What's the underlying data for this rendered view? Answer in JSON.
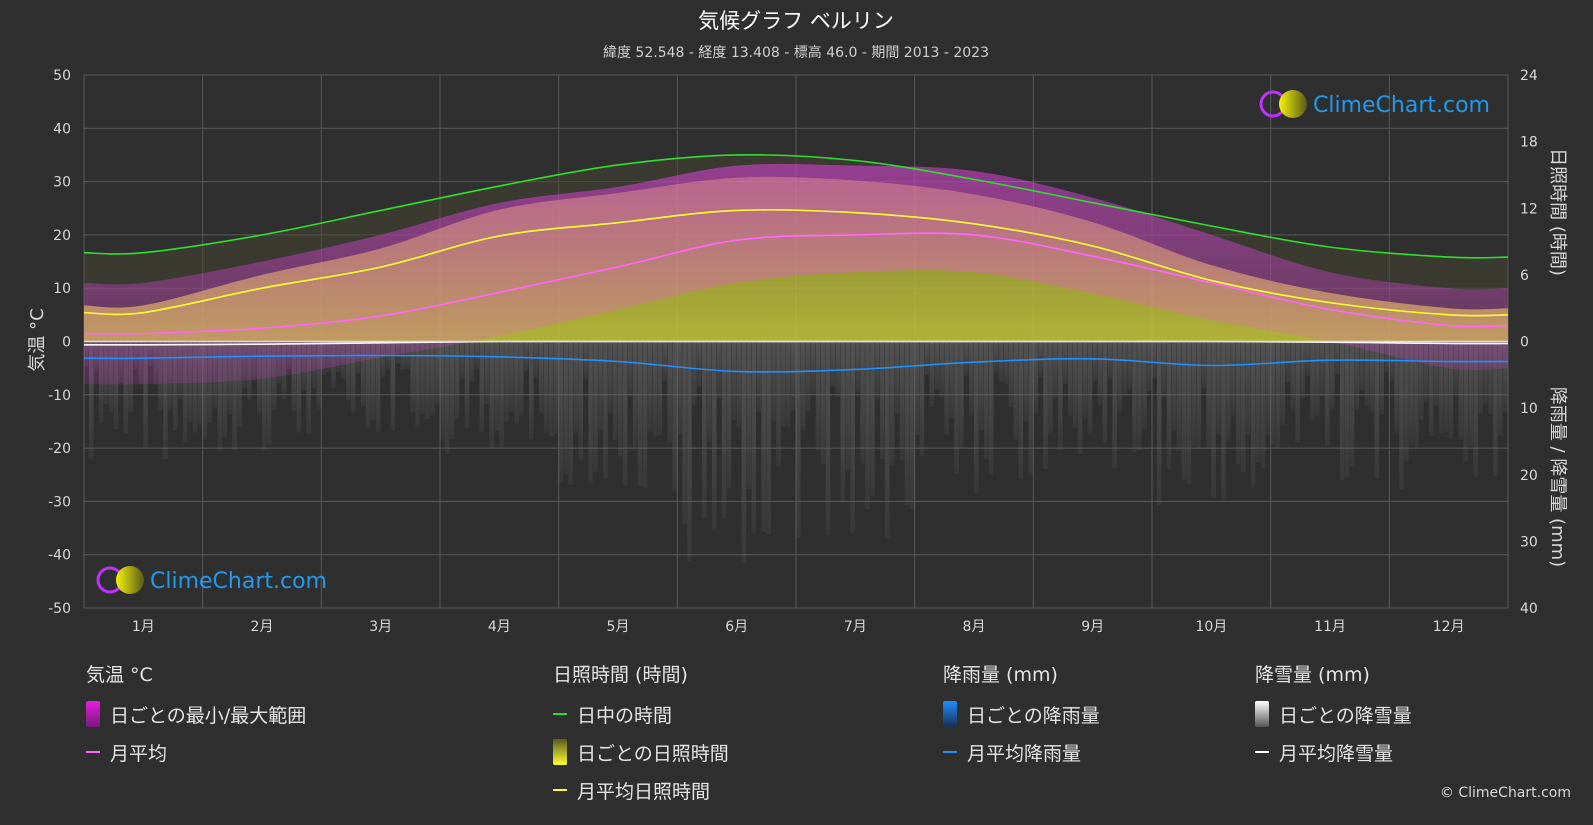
{
  "colors": {
    "background": "#2f2f2f",
    "daylight": "#2ee02e",
    "sunshine_avg": "#ffff33",
    "sunshine_bar": "#cfcf33",
    "temp_avg": "#ff66ff",
    "temp_range": "#e31ee3",
    "rain_avg": "#1e90ff",
    "rain_bar": "#1e6fb0",
    "snow_avg": "#ffffff",
    "snow_bar": "#bbbbbb",
    "grid": "#5a5a5a",
    "brand": "#1e9bef"
  },
  "header": {
    "title": "気候グラフ ベルリン",
    "subtitle": "緯度 52.548 - 経度 13.408 - 標高 46.0 - 期間 2013 - 2023"
  },
  "brand": {
    "logo_text": "ClimeChart.com",
    "copyright": "© ClimeChart.com"
  },
  "legend": {
    "temperature": {
      "heading": "気温 °C",
      "range_label": "日ごとの最小/最大範囲",
      "avg_label": "月平均"
    },
    "sunshine": {
      "heading": "日照時間 (時間)",
      "daylight_label": "日中の時間",
      "daily_label": "日ごとの日照時間",
      "avg_label": "月平均日照時間"
    },
    "rain": {
      "heading": "降雨量 (mm)",
      "daily_label": "日ごとの降雨量",
      "avg_label": "月平均降雨量"
    },
    "snow": {
      "heading": "降雪量 (mm)",
      "daily_label": "日ごとの降雪量",
      "avg_label": "月平均降雪量"
    }
  },
  "chart_data": {
    "type": "line",
    "title": "気候グラフ ベルリン",
    "subtitle": "緯度 52.548 - 経度 13.408 - 標高 46.0 - 期間 2013 - 2023",
    "categories": [
      "1月",
      "2月",
      "3月",
      "4月",
      "5月",
      "6月",
      "7月",
      "8月",
      "9月",
      "10月",
      "11月",
      "12月"
    ],
    "axes": {
      "left": {
        "label": "気温 °C",
        "min": -50,
        "max": 50,
        "ticks": [
          50,
          40,
          30,
          20,
          10,
          0,
          -10,
          -20,
          -30,
          -40,
          -50
        ]
      },
      "right_top": {
        "label": "日照時間 (時間)",
        "min": 0,
        "max": 24,
        "ticks": [
          24,
          18,
          12,
          6,
          0
        ]
      },
      "right_bottom": {
        "label": "降雨量 / 降雪量 (mm)",
        "min": 0,
        "max": 40,
        "ticks": [
          0,
          10,
          20,
          30,
          40
        ]
      }
    },
    "grid": true,
    "series": [
      {
        "name": "日中の時間",
        "axis": "sunshine_hours",
        "values": [
          8.0,
          9.6,
          11.8,
          14.0,
          15.9,
          16.8,
          16.3,
          14.6,
          12.5,
          10.4,
          8.5,
          7.6
        ]
      },
      {
        "name": "月平均日照時間",
        "axis": "sunshine_hours",
        "values": [
          2.6,
          4.8,
          6.7,
          9.5,
          10.7,
          11.8,
          11.6,
          10.6,
          8.6,
          5.5,
          3.5,
          2.4
        ]
      },
      {
        "name": "月平均",
        "axis": "temperature_c",
        "values": [
          1.5,
          2.5,
          4.8,
          9.2,
          14.0,
          19.0,
          20.0,
          20.0,
          16.0,
          11.0,
          6.0,
          3.0
        ]
      },
      {
        "name": "月平均降雨量",
        "axis": "precip_mm",
        "values": [
          2.5,
          2.2,
          2.1,
          2.3,
          3.0,
          4.5,
          4.2,
          3.1,
          2.6,
          3.6,
          2.8,
          3.0
        ]
      },
      {
        "name": "月平均降雪量",
        "axis": "precip_mm",
        "values": [
          0.5,
          0.4,
          0.2,
          0.0,
          0.0,
          0.0,
          0.0,
          0.0,
          0.0,
          0.0,
          0.1,
          0.3
        ]
      }
    ],
    "temp_range": {
      "name": "日ごとの最小/最大範囲",
      "min": [
        -8,
        -7,
        -3,
        1,
        6,
        11,
        13,
        13,
        9,
        4,
        0,
        -5
      ],
      "max": [
        11,
        15,
        20,
        26,
        29,
        33,
        33,
        32,
        27,
        20,
        13,
        10
      ]
    }
  }
}
